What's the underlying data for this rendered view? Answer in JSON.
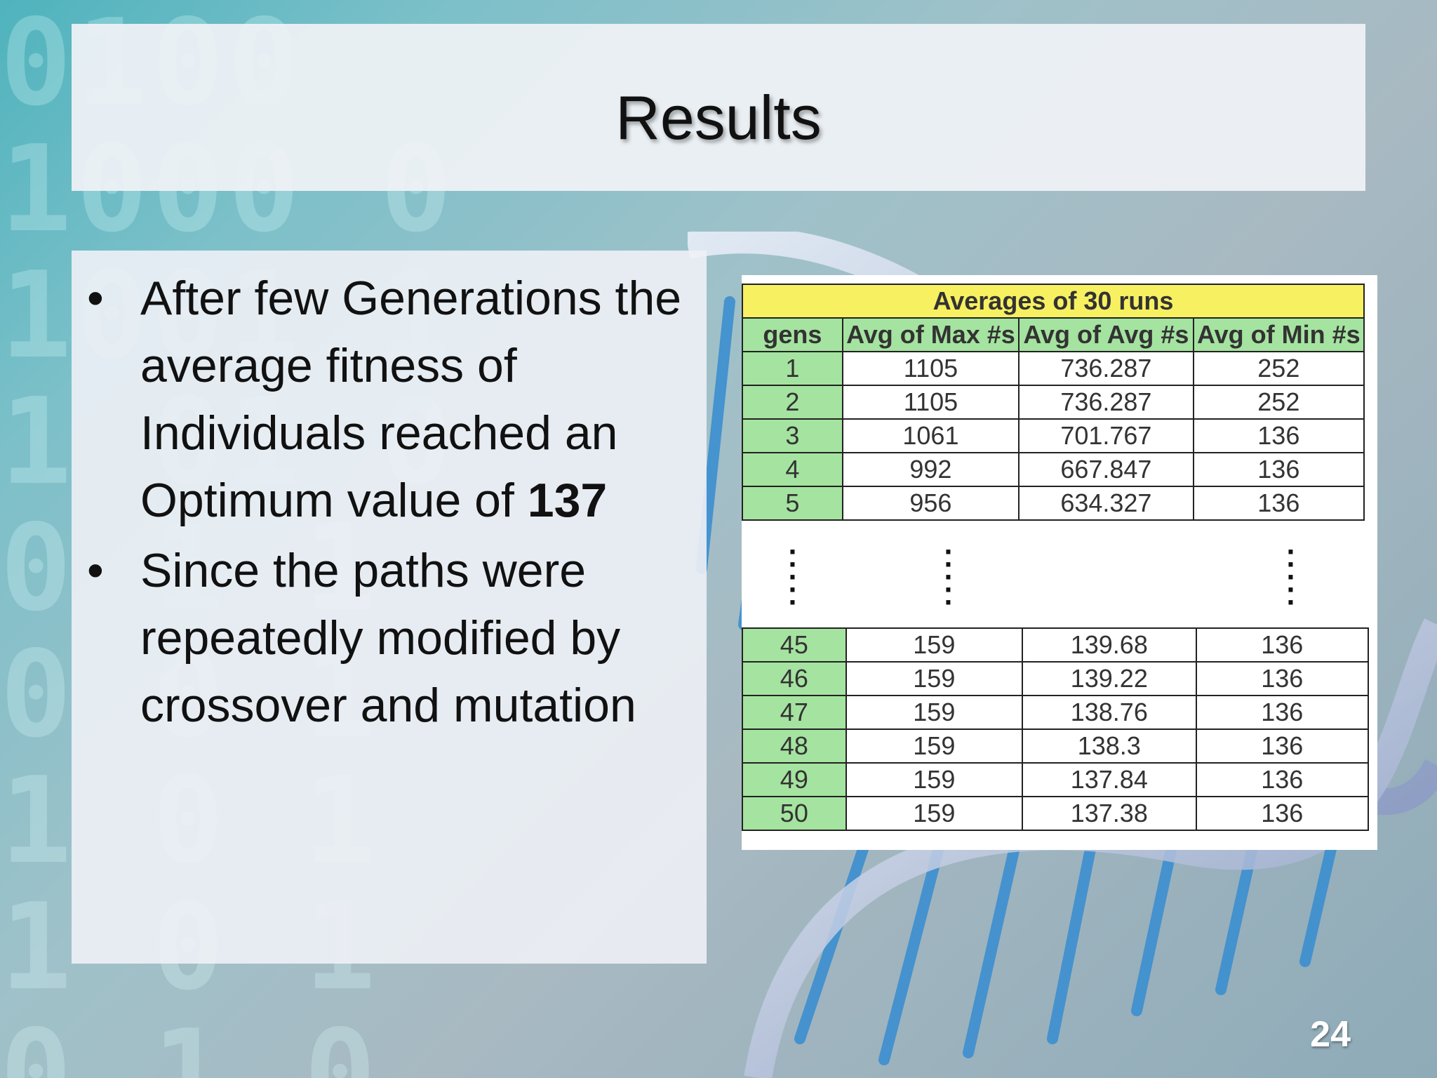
{
  "slide": {
    "title": "Results",
    "page_number": "24"
  },
  "bullets": [
    {
      "text": "After few Generations the average fitness of Individuals reached an Optimum value of ",
      "emphasis": "137"
    },
    {
      "text": "Since the paths were repeatedly modified by crossover and mutation",
      "emphasis": ""
    }
  ],
  "table": {
    "caption": "Averages of 30 runs",
    "headers": [
      "gens",
      "Avg of Max #s",
      "Avg of Avg #s",
      "Avg of Min #s"
    ],
    "rows_top": [
      [
        "1",
        "1105",
        "736.287",
        "252"
      ],
      [
        "2",
        "1105",
        "736.287",
        "252"
      ],
      [
        "3",
        "1061",
        "701.767",
        "136"
      ],
      [
        "4",
        "992",
        "667.847",
        "136"
      ],
      [
        "5",
        "956",
        "634.327",
        "136"
      ]
    ],
    "rows_bottom": [
      [
        "45",
        "159",
        "139.68",
        "136"
      ],
      [
        "46",
        "159",
        "139.22",
        "136"
      ],
      [
        "47",
        "159",
        "138.76",
        "136"
      ],
      [
        "48",
        "159",
        "138.3",
        "136"
      ],
      [
        "49",
        "159",
        "137.84",
        "136"
      ],
      [
        "50",
        "159",
        "137.38",
        "136"
      ]
    ]
  },
  "colors": {
    "caption_bg": "#f7f061",
    "header_text": "#b23a16",
    "gen_cell_bg": "#a5e3a0"
  }
}
